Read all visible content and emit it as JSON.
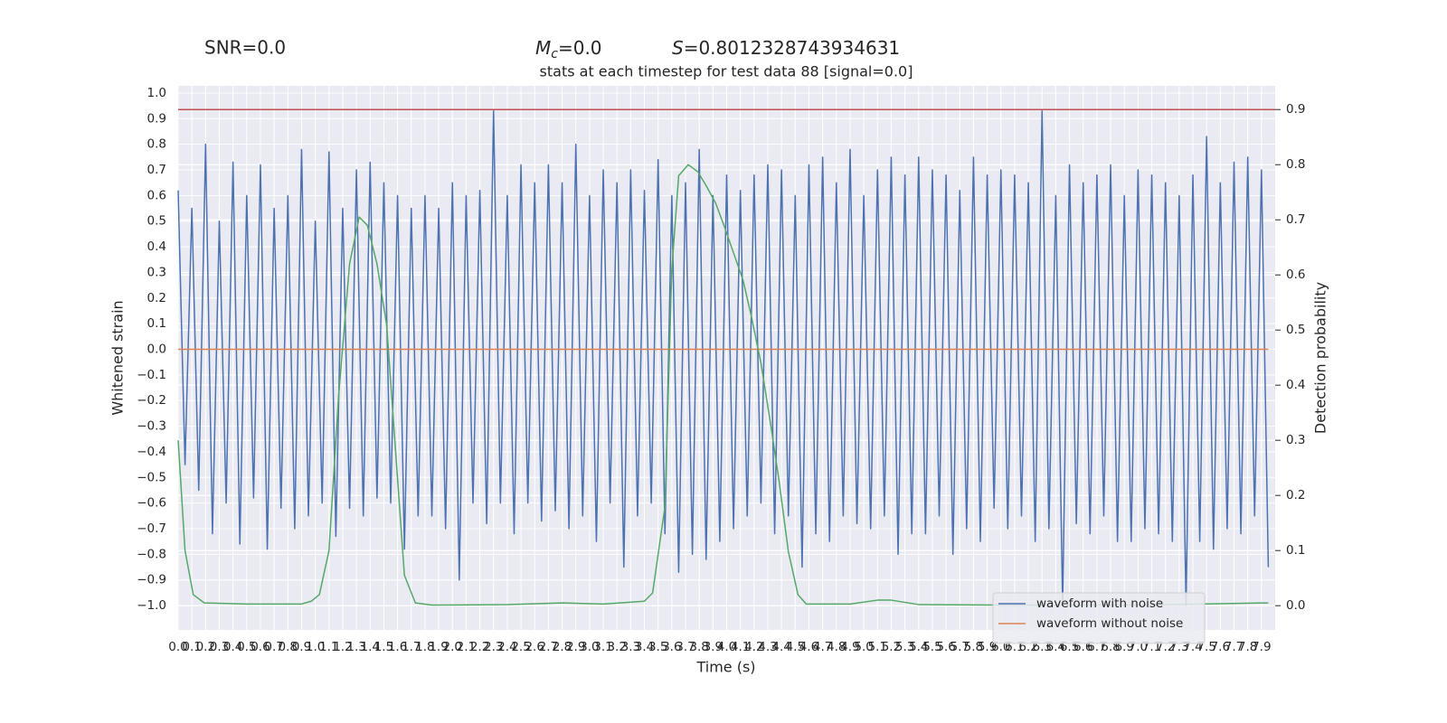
{
  "chart_data": {
    "type": "line",
    "title": "stats at each timestep for test data 88 [signal=0.0]",
    "annotations": {
      "snr": "SNR=0.0",
      "mc": {
        "symbol": "M",
        "subscript": "c",
        "text": "=0.0"
      },
      "s": {
        "symbol": "S",
        "text": "=0.8012328743934631"
      }
    },
    "xlabel": "Time (s)",
    "ylabel": "Whitened strain",
    "y2label": "Detection probability",
    "xlim": [
      0,
      8
    ],
    "ylim": [
      -1.095,
      1.028
    ],
    "y2lim": [
      -0.044,
      0.943
    ],
    "xticks": [
      {
        "value": 0,
        "label": "0.0"
      },
      0.1,
      0.2,
      0.3,
      0.4,
      0.5,
      0.6,
      0.7,
      0.8,
      0.9,
      {
        "value": 1,
        "label": "1.0"
      },
      1.1,
      1.2,
      1.3,
      1.4,
      1.5,
      1.6,
      1.7,
      1.8,
      1.9,
      {
        "value": 2,
        "label": "2.0"
      },
      2.1,
      2.2,
      2.3,
      2.4,
      2.5,
      2.6,
      2.7,
      2.8,
      2.9,
      {
        "value": 3,
        "label": "3.0"
      },
      3.1,
      3.2,
      3.3,
      3.4,
      3.5,
      3.6,
      3.7,
      3.8,
      3.9,
      {
        "value": 4,
        "label": "4.0"
      },
      4.1,
      4.2,
      4.3,
      4.4,
      4.5,
      4.6,
      4.7,
      4.8,
      4.9,
      {
        "value": 5,
        "label": "5.0"
      },
      5.1,
      5.2,
      5.3,
      5.4,
      5.5,
      5.6,
      5.7,
      5.8,
      5.9,
      {
        "value": 6,
        "label": "6.0"
      },
      6.1,
      6.2,
      6.3,
      6.4,
      6.5,
      6.6,
      6.7,
      6.8,
      6.9,
      {
        "value": 7,
        "label": "7.0"
      },
      7.1,
      7.2,
      7.3,
      7.4,
      7.5,
      7.6,
      7.7,
      7.8,
      7.9
    ],
    "yticks": [
      {
        "value": -1.0,
        "label": "−1.0"
      },
      {
        "value": -0.9,
        "label": "−0.9"
      },
      {
        "value": -0.8,
        "label": "−0.8"
      },
      {
        "value": -0.7,
        "label": "−0.7"
      },
      {
        "value": -0.6,
        "label": "−0.6"
      },
      {
        "value": -0.5,
        "label": "−0.5"
      },
      {
        "value": -0.4,
        "label": "−0.4"
      },
      {
        "value": -0.3,
        "label": "−0.3"
      },
      {
        "value": -0.2,
        "label": "−0.2"
      },
      {
        "value": -0.1,
        "label": "−0.1"
      },
      {
        "value": 0,
        "label": "0.0"
      },
      0.1,
      0.2,
      0.3,
      0.4,
      0.5,
      0.6,
      0.7,
      0.8,
      0.9,
      {
        "value": 1,
        "label": "1.0"
      }
    ],
    "y2ticks": [
      {
        "value": 0,
        "label": "0.0"
      },
      0.1,
      0.2,
      0.3,
      0.4,
      0.5,
      0.6,
      0.7,
      0.8,
      0.9
    ],
    "grid": true,
    "legend": "lower right",
    "series": [
      {
        "name": "waveform with noise",
        "color": "#4c72b0",
        "axis": "y",
        "x": [
          0,
          0.05,
          0.1,
          0.15,
          0.2,
          0.25,
          0.3,
          0.35,
          0.4,
          0.45,
          0.5,
          0.55,
          0.6,
          0.65,
          0.7,
          0.75,
          0.8,
          0.85,
          0.9,
          0.95,
          1,
          1.05,
          1.1,
          1.15,
          1.2,
          1.25,
          1.3,
          1.35,
          1.4,
          1.45,
          1.5,
          1.55,
          1.6,
          1.65,
          1.7,
          1.75,
          1.8,
          1.85,
          1.9,
          1.95,
          2,
          2.05,
          2.1,
          2.15,
          2.2,
          2.25,
          2.3,
          2.35,
          2.4,
          2.45,
          2.5,
          2.55,
          2.6,
          2.65,
          2.7,
          2.75,
          2.8,
          2.85,
          2.9,
          2.95,
          3,
          3.05,
          3.1,
          3.15,
          3.2,
          3.25,
          3.3,
          3.35,
          3.4,
          3.45,
          3.5,
          3.55,
          3.6,
          3.65,
          3.7,
          3.75,
          3.8,
          3.85,
          3.9,
          3.95,
          4,
          4.05,
          4.1,
          4.15,
          4.2,
          4.25,
          4.3,
          4.35,
          4.4,
          4.45,
          4.5,
          4.55,
          4.6,
          4.65,
          4.7,
          4.75,
          4.8,
          4.85,
          4.9,
          4.95,
          5,
          5.05,
          5.1,
          5.15,
          5.2,
          5.25,
          5.3,
          5.35,
          5.4,
          5.45,
          5.5,
          5.55,
          5.6,
          5.65,
          5.7,
          5.75,
          5.8,
          5.85,
          5.9,
          5.95,
          6,
          6.05,
          6.1,
          6.15,
          6.2,
          6.25,
          6.3,
          6.35,
          6.4,
          6.45,
          6.5,
          6.55,
          6.6,
          6.65,
          6.7,
          6.75,
          6.8,
          6.85,
          6.9,
          6.95,
          7,
          7.05,
          7.1,
          7.15,
          7.2,
          7.25,
          7.3,
          7.35,
          7.4,
          7.45,
          7.5,
          7.55,
          7.6,
          7.65,
          7.7,
          7.75,
          7.8,
          7.85,
          7.9,
          7.95
        ],
        "values": [
          0.62,
          -0.45,
          0.55,
          -0.55,
          0.8,
          -0.72,
          0.5,
          -0.6,
          0.73,
          -0.76,
          0.6,
          -0.58,
          0.72,
          -0.78,
          0.55,
          -0.62,
          0.6,
          -0.7,
          0.78,
          -0.65,
          0.5,
          -0.6,
          0.77,
          -0.73,
          0.55,
          -0.62,
          0.7,
          -0.65,
          0.73,
          -0.58,
          0.65,
          -0.6,
          0.6,
          -0.78,
          0.55,
          -0.65,
          0.6,
          -0.65,
          0.55,
          -0.7,
          0.65,
          -0.9,
          0.6,
          -0.6,
          0.62,
          -0.68,
          0.93,
          -0.6,
          0.6,
          -0.72,
          0.72,
          -0.6,
          0.65,
          -0.67,
          0.72,
          -0.63,
          0.65,
          -0.7,
          0.8,
          -0.65,
          0.6,
          -0.75,
          0.7,
          -0.6,
          0.65,
          -0.85,
          0.7,
          -0.65,
          0.62,
          -0.6,
          0.74,
          -0.72,
          0.6,
          -0.87,
          0.65,
          -0.8,
          0.78,
          -0.82,
          0.6,
          -0.75,
          0.68,
          -0.7,
          0.62,
          -0.65,
          0.68,
          -0.6,
          0.72,
          -0.72,
          0.7,
          -0.65,
          0.6,
          -0.85,
          0.72,
          -0.72,
          0.75,
          -0.75,
          0.65,
          -0.65,
          0.78,
          -0.68,
          0.6,
          -0.7,
          0.7,
          -0.65,
          0.75,
          -0.8,
          0.68,
          -0.72,
          0.75,
          -0.72,
          0.7,
          -0.65,
          0.68,
          -0.8,
          0.62,
          -0.7,
          0.75,
          -0.75,
          0.68,
          -0.62,
          0.7,
          -0.7,
          0.68,
          -0.65,
          0.65,
          -0.75,
          0.93,
          -0.7,
          0.6,
          -1.0,
          0.72,
          -0.68,
          0.65,
          -0.72,
          0.68,
          -0.65,
          0.72,
          -0.75,
          0.6,
          -0.75,
          0.7,
          -0.7,
          0.68,
          -0.72,
          0.65,
          -0.75,
          0.6,
          -1.0,
          0.68,
          -0.75,
          0.83,
          -0.78,
          0.65,
          -0.7,
          0.73,
          -0.72,
          0.75,
          -0.65,
          0.7,
          -0.85
        ]
      },
      {
        "name": "waveform without noise",
        "color": "#dd8452",
        "axis": "y",
        "x": [
          0,
          7.95
        ],
        "values": [
          0.0,
          0.0
        ]
      },
      {
        "color": "#55a868",
        "axis": "y2",
        "x": [
          0,
          0.05,
          0.11,
          0.19,
          0.5,
          0.9,
          0.97,
          1.03,
          1.1,
          1.17,
          1.25,
          1.32,
          1.38,
          1.45,
          1.52,
          1.58,
          1.65,
          1.73,
          1.85,
          2.4,
          2.8,
          3.1,
          3.4,
          3.46,
          3.55,
          3.6,
          3.65,
          3.72,
          3.79,
          3.85,
          3.92,
          3.98,
          4.05,
          4.12,
          4.18,
          4.25,
          4.32,
          4.38,
          4.45,
          4.52,
          4.58,
          4.9,
          5.1,
          5.2,
          5.4,
          6.0,
          7.0,
          7.95
        ],
        "values": [
          0.3,
          0.1,
          0.02,
          0.005,
          0.003,
          0.003,
          0.008,
          0.02,
          0.1,
          0.38,
          0.62,
          0.705,
          0.69,
          0.62,
          0.51,
          0.3,
          0.055,
          0.005,
          0.001,
          0.002,
          0.005,
          0.003,
          0.008,
          0.023,
          0.18,
          0.61,
          0.78,
          0.8,
          0.787,
          0.762,
          0.73,
          0.69,
          0.64,
          0.59,
          0.525,
          0.44,
          0.33,
          0.23,
          0.098,
          0.02,
          0.003,
          0.003,
          0.01,
          0.01,
          0.002,
          0.001,
          0.001,
          0.005
        ]
      }
    ],
    "hlines": [
      {
        "value": 0.9,
        "axis": "y2",
        "color": "#c44e52"
      }
    ]
  }
}
